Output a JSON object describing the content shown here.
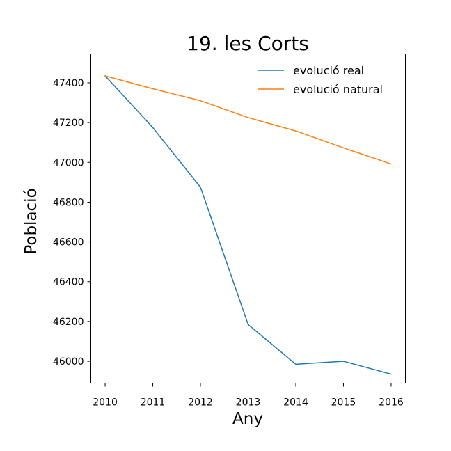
{
  "chart_data": {
    "type": "line",
    "title": "19. les Corts",
    "xlabel": "Any",
    "ylabel": "Població",
    "x": [
      2010,
      2011,
      2012,
      2013,
      2014,
      2015,
      2016
    ],
    "x_ticks": [
      "2010",
      "2011",
      "2012",
      "2013",
      "2014",
      "2015",
      "2016"
    ],
    "y_ticks": [
      "46000",
      "46200",
      "46400",
      "46600",
      "46800",
      "47000",
      "47200",
      "47400"
    ],
    "xlim": [
      2009.7,
      2016.3
    ],
    "ylim": [
      45890,
      47545
    ],
    "grid": false,
    "legend_position": "top-right",
    "series": [
      {
        "name": "evolució real",
        "color": "#1f77b4",
        "values": [
          47435,
          47175,
          46875,
          46185,
          45985,
          46000,
          45935
        ]
      },
      {
        "name": "evolució natural",
        "color": "#ff7f0e",
        "values": [
          47435,
          47370,
          47310,
          47225,
          47158,
          47073,
          46992
        ]
      }
    ]
  }
}
